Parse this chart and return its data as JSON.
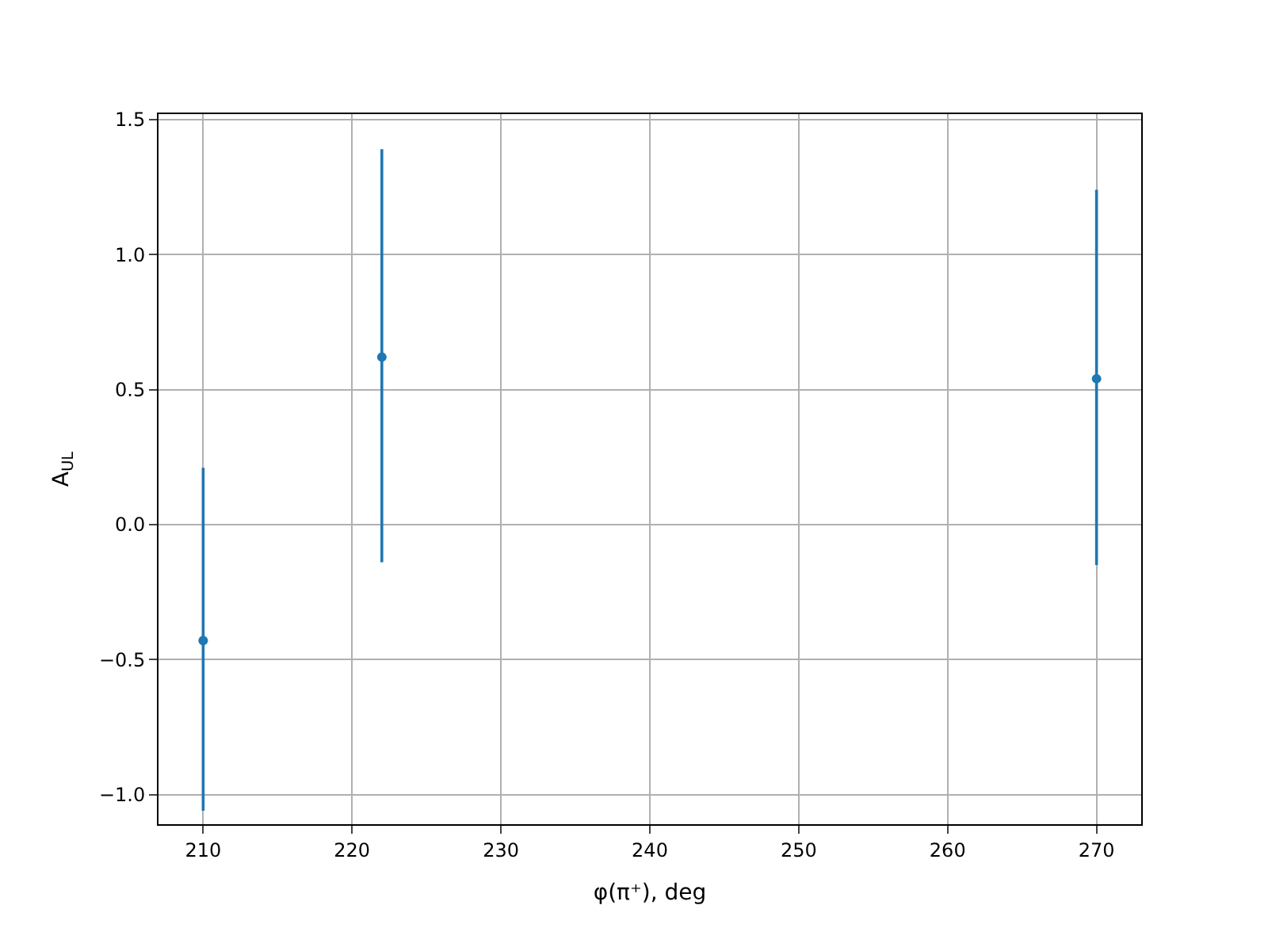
{
  "chart_data": {
    "type": "scatter",
    "xlabel": "φ(π⁺), deg",
    "ylabel": "A$_{UL}$",
    "x": [
      210,
      222,
      270
    ],
    "series": [
      {
        "color": "#1f77b4",
        "values": [
          -0.43,
          0.62,
          0.54
        ],
        "errors": [
          [
            -1.06,
            0.21
          ],
          [
            -0.14,
            1.39
          ],
          [
            -0.15,
            1.24
          ]
        ]
      }
    ],
    "xlim": [
      207.0,
      273.0
    ],
    "xticks": [
      210,
      220,
      230,
      240,
      250,
      260,
      270
    ],
    "ylim": [
      -1.11,
      1.52
    ],
    "yticks": [
      {
        "value": -1,
        "label": "−1.0"
      },
      {
        "value": -0.5,
        "label": "−0.5"
      },
      {
        "value": 0,
        "label": "0.0"
      },
      0.5,
      {
        "value": 1,
        "label": "1.0"
      },
      1.5
    ],
    "grid": true,
    "marker": "circle"
  }
}
